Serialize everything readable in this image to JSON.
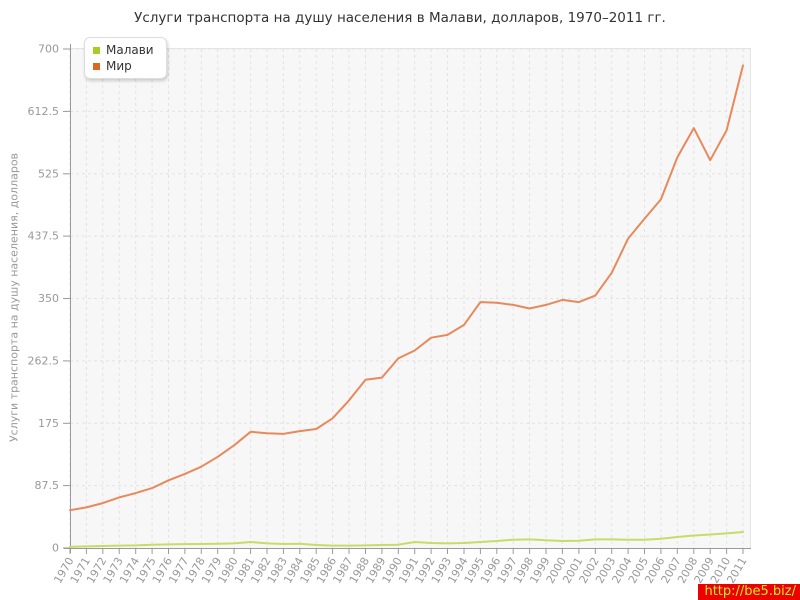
{
  "title": "Услуги транспорта на душу населения в Малави, долларов, 1970–2011 гг.",
  "legend": {
    "items": [
      {
        "label": "Малави",
        "color": "#aacc22"
      },
      {
        "label": "Мир",
        "color": "#dd6622"
      }
    ]
  },
  "watermark": {
    "text": "http://be5.biz/",
    "bg": "#ee0000",
    "color": "#c8ee22"
  },
  "chart_data": {
    "type": "line",
    "title": "Услуги транспорта на душу населения в Малави, долларов, 1970–2011 гг.",
    "xlabel": "",
    "ylabel": "Услуги транспорта на душу населения, долларов",
    "ylim": [
      0,
      700
    ],
    "yticks": [
      0,
      87.5,
      175,
      262.5,
      350,
      437.5,
      525,
      612.5,
      700
    ],
    "grid": true,
    "grid_style": "dashed",
    "legend_position": "top-left",
    "plot_bg": "#f7f7f7",
    "x": [
      1970,
      1971,
      1972,
      1973,
      1974,
      1975,
      1976,
      1977,
      1978,
      1979,
      1980,
      1981,
      1982,
      1983,
      1984,
      1985,
      1986,
      1987,
      1988,
      1989,
      1990,
      1991,
      1992,
      1993,
      1994,
      1995,
      1996,
      1997,
      1998,
      1999,
      2000,
      2001,
      2002,
      2003,
      2004,
      2005,
      2006,
      2007,
      2008,
      2009,
      2010,
      2011
    ],
    "series": [
      {
        "name": "Малави",
        "color": "#aacc22",
        "line_color": "#c5dd66",
        "values": [
          1.5,
          2.3,
          2.8,
          3.3,
          3.7,
          4.5,
          5,
          5.5,
          5.6,
          6,
          6.5,
          8.4,
          6.5,
          5.6,
          6,
          4.2,
          3.3,
          3.3,
          3.7,
          4.2,
          4.6,
          8.4,
          7,
          6.4,
          7,
          8.4,
          9.8,
          11.7,
          12.1,
          11,
          9.8,
          10.3,
          12.1,
          12.1,
          11.7,
          11.7,
          13,
          15.4,
          17.5,
          19,
          20.5,
          22.4
        ]
      },
      {
        "name": "Мир",
        "color": "#dd6622",
        "line_color": "#e8895c",
        "values": [
          53,
          57,
          63,
          71,
          77,
          84,
          95,
          104,
          114,
          128,
          144,
          163,
          161,
          160,
          164,
          167,
          182,
          207,
          236,
          239,
          266,
          277,
          295,
          299,
          313,
          345,
          344,
          341,
          336,
          341,
          348,
          345,
          354,
          386,
          434,
          462,
          489,
          548,
          589,
          544,
          586,
          677
        ]
      }
    ]
  }
}
